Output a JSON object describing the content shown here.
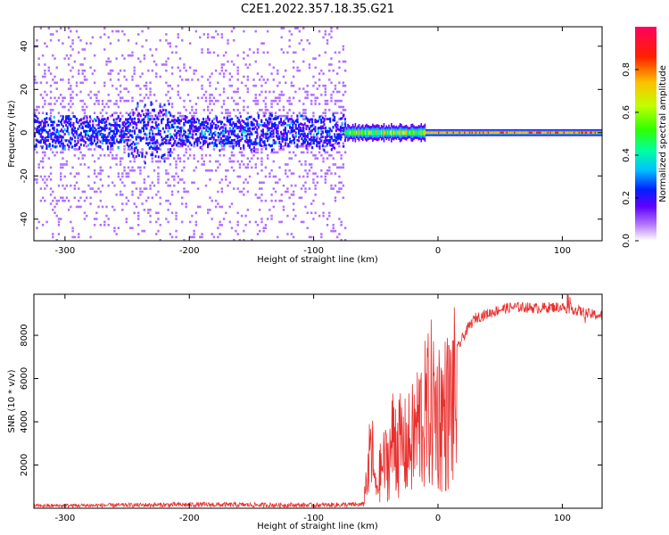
{
  "title": "C2E1.2022.357.18.35.G21",
  "chart_data": [
    {
      "type": "heatmap",
      "xlabel": "Height of straight line (km)",
      "ylabel": "Frequency (Hz)",
      "xlim": [
        -325,
        132
      ],
      "ylim": [
        -50,
        49
      ],
      "x_ticks": [
        -300,
        -200,
        -100,
        0,
        100
      ],
      "y_ticks": [
        -40,
        -20,
        0,
        20,
        40
      ],
      "grid": false,
      "colorbar": {
        "label": "Normalized spectral amplitude",
        "range": [
          0,
          1
        ],
        "ticks": [
          "0.0",
          "0.2",
          "0.4",
          "0.6",
          "0.8"
        ],
        "colors": [
          "#ffffff",
          "#b070ff",
          "#6000ff",
          "#0020ff",
          "#00c0ff",
          "#00ffa0",
          "#30ff00",
          "#c0ff00",
          "#ffc000",
          "#ff2000",
          "#ff0060"
        ]
      },
      "notes": {
        "scattered_noise_region_km": [
          -325,
          -75
        ],
        "narrow_carrier_region_km": [
          -75,
          132
        ],
        "carrier_frequency_hz": 0
      }
    },
    {
      "type": "line",
      "xlabel": "Height of straight line (km)",
      "ylabel": "SNR (10 * v/v)",
      "xlim": [
        -325,
        132
      ],
      "ylim": [
        0,
        9900
      ],
      "x_ticks": [
        -300,
        -200,
        -100,
        0,
        100
      ],
      "y_ticks": [
        2000,
        4000,
        6000,
        8000
      ],
      "grid": false,
      "series": [
        {
          "color": "#e8302e",
          "x": [
            -325,
            -300,
            -250,
            -200,
            -150,
            -100,
            -70,
            -60,
            -56,
            -54,
            -50,
            -45,
            -40,
            -35,
            -30,
            -25,
            -20,
            -15,
            -10,
            -5,
            0,
            5,
            10,
            15,
            20,
            25,
            30,
            40,
            50,
            60,
            70,
            80,
            90,
            100,
            110,
            120,
            132
          ],
          "values": [
            100,
            110,
            130,
            150,
            140,
            130,
            150,
            150,
            2000,
            4200,
            1100,
            2700,
            3000,
            4700,
            3900,
            3800,
            4400,
            5500,
            5800,
            6600,
            6100,
            6000,
            6400,
            7300,
            7900,
            8400,
            8800,
            9000,
            9200,
            9300,
            9300,
            9250,
            9300,
            9300,
            9200,
            9000,
            8900
          ]
        }
      ]
    }
  ]
}
